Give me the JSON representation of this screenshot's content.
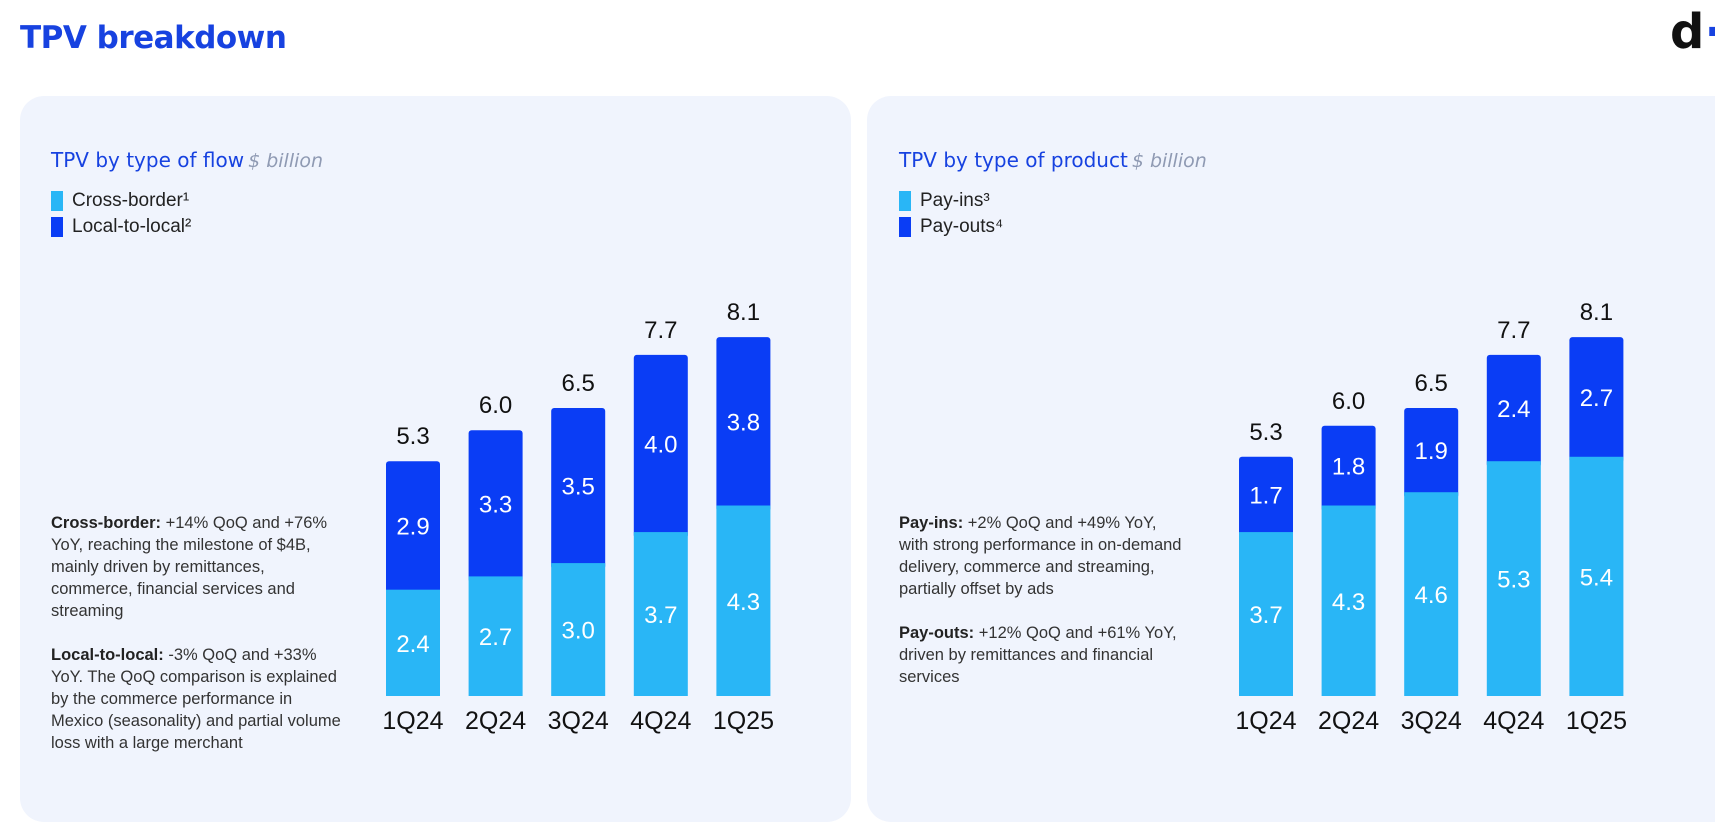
{
  "page": {
    "title": "TPV breakdown",
    "logo_letter": "d",
    "logo_dot": "·"
  },
  "colors": {
    "title_blue": "#1742e0",
    "light_bar": "#29b6f6",
    "dark_bar": "#0a3df5",
    "panel_bg": "#f0f4fd"
  },
  "flow": {
    "title": "TPV by type of flow",
    "unit": "$ billion",
    "legend": [
      {
        "label": "Cross-border¹",
        "color": "#29b6f6"
      },
      {
        "label": "Local-to-local²",
        "color": "#0a3df5"
      }
    ],
    "commentary": [
      {
        "heading": "Cross-border:",
        "text": "+14% QoQ and +76% YoY, reaching the milestone of $4B, mainly driven by remittances, commerce, financial services and streaming"
      },
      {
        "heading": "Local-to-local:",
        "text": "-3% QoQ and +33% YoY. The QoQ comparison is explained by the commerce performance in Mexico (seasonality) and partial volume loss with a large merchant"
      }
    ]
  },
  "product": {
    "title": "TPV by type of product",
    "unit": "$ billion",
    "legend": [
      {
        "label": "Pay-ins³",
        "color": "#29b6f6"
      },
      {
        "label": "Pay-outs⁴",
        "color": "#0a3df5"
      }
    ],
    "commentary": [
      {
        "heading": "Pay-ins:",
        "text": "+2% QoQ and +49% YoY, with strong performance in on-demand delivery, commerce and streaming, partially offset by ads"
      },
      {
        "heading": "Pay-outs:",
        "text": "+12% QoQ and +61% YoY, driven by remittances and financial services"
      }
    ]
  },
  "chart_data": [
    {
      "type": "bar",
      "stacked": true,
      "title": "TPV by type of flow",
      "ylabel": "$ billion",
      "categories": [
        "1Q24",
        "2Q24",
        "3Q24",
        "4Q24",
        "1Q25"
      ],
      "series": [
        {
          "name": "Cross-border¹",
          "values": [
            2.4,
            2.7,
            3.0,
            3.7,
            4.3
          ],
          "labels": [
            "2.4",
            "2.7",
            "3.0",
            "3.7",
            "4.3"
          ]
        },
        {
          "name": "Local-to-local²",
          "values": [
            2.9,
            3.3,
            3.5,
            4.0,
            3.8
          ],
          "labels": [
            "2.9",
            "3.3",
            "3.5",
            "4.0",
            "3.8"
          ]
        }
      ],
      "totals": [
        5.3,
        6.0,
        6.5,
        7.7,
        8.1
      ],
      "total_labels": [
        "5.3",
        "6.0",
        "6.5",
        "7.7",
        "8.1"
      ],
      "grid": false,
      "legend": "top-left"
    },
    {
      "type": "bar",
      "stacked": true,
      "title": "TPV by type of product",
      "ylabel": "$ billion",
      "categories": [
        "1Q24",
        "2Q24",
        "3Q24",
        "4Q24",
        "1Q25"
      ],
      "series": [
        {
          "name": "Pay-ins³",
          "values": [
            3.7,
            4.3,
            4.6,
            5.3,
            5.4
          ],
          "labels": [
            "3.7",
            "4.3",
            "4.6",
            "5.3",
            "5.4"
          ]
        },
        {
          "name": "Pay-outs⁴",
          "values": [
            1.7,
            1.8,
            1.9,
            2.4,
            2.7
          ],
          "labels": [
            "1.7",
            "1.8",
            "1.9",
            "2.4",
            "2.7"
          ]
        }
      ],
      "totals": [
        5.3,
        6.0,
        6.5,
        7.7,
        8.1
      ],
      "total_labels": [
        "5.3",
        "6.0",
        "6.5",
        "7.7",
        "8.1"
      ],
      "grid": false,
      "legend": "top-left"
    }
  ]
}
